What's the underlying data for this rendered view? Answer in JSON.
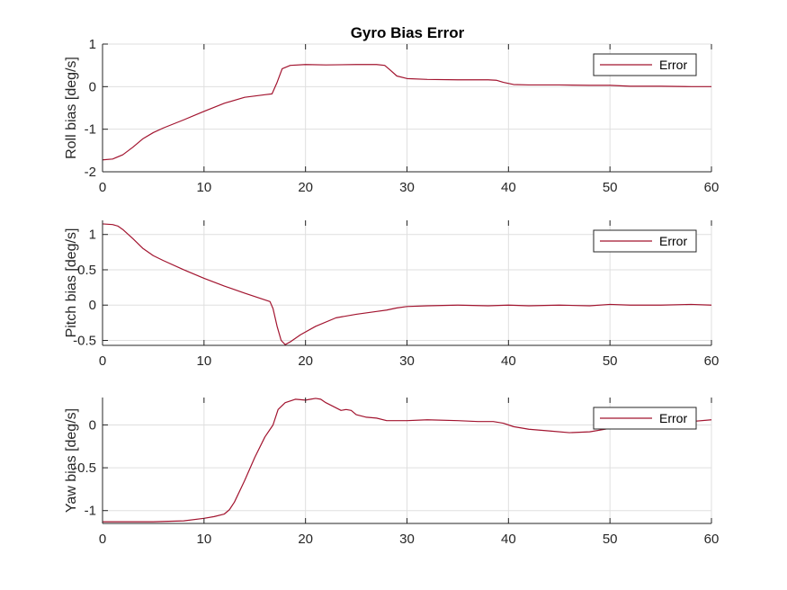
{
  "figure_title": "Gyro Bias Error",
  "colors": {
    "line": "#A2142F",
    "axis": "#262626",
    "grid": "#dfdfdf",
    "background": "#ffffff"
  },
  "chart_data": [
    {
      "type": "line",
      "title": "Gyro Bias Error",
      "xlabel": "",
      "ylabel": "Roll bias [deg/s]",
      "xlim": [
        0,
        60
      ],
      "ylim": [
        -2,
        1
      ],
      "xticks": [
        0,
        10,
        20,
        30,
        40,
        50,
        60
      ],
      "yticks": [
        -2,
        -1,
        0,
        1
      ],
      "ytick_labels": [
        "-2",
        "-1",
        "0",
        "1"
      ],
      "grid": true,
      "legend_position": "top-right",
      "series": [
        {
          "name": "Error",
          "x": [
            0,
            1,
            2,
            3,
            4,
            5,
            6,
            8,
            10,
            12,
            14,
            16,
            16.7,
            17.2,
            17.7,
            18.5,
            20,
            22,
            25,
            27,
            27.8,
            28.3,
            29,
            30,
            32,
            35,
            38,
            38.8,
            39.5,
            40.5,
            42,
            45,
            48,
            50,
            52,
            55,
            58,
            60
          ],
          "y": [
            -1.72,
            -1.7,
            -1.6,
            -1.42,
            -1.22,
            -1.08,
            -0.97,
            -0.78,
            -0.58,
            -0.39,
            -0.25,
            -0.19,
            -0.17,
            0.1,
            0.42,
            0.5,
            0.52,
            0.51,
            0.52,
            0.52,
            0.5,
            0.4,
            0.25,
            0.19,
            0.17,
            0.16,
            0.16,
            0.15,
            0.1,
            0.05,
            0.04,
            0.04,
            0.03,
            0.03,
            0.01,
            0.01,
            0.0,
            0.0
          ]
        }
      ]
    },
    {
      "type": "line",
      "title": "",
      "xlabel": "",
      "ylabel": "Pitch bias [deg/s]",
      "xlim": [
        0,
        60
      ],
      "ylim": [
        -0.57,
        1.2
      ],
      "xticks": [
        0,
        10,
        20,
        30,
        40,
        50,
        60
      ],
      "yticks": [
        -0.5,
        0,
        0.5,
        1
      ],
      "ytick_labels": [
        "-0.5",
        "0",
        "0.5",
        "1"
      ],
      "grid": true,
      "legend_position": "top-right",
      "series": [
        {
          "name": "Error",
          "x": [
            0,
            1,
            1.5,
            2,
            3,
            4,
            5,
            6,
            8,
            10,
            12,
            14,
            16.5,
            16.8,
            17.2,
            17.6,
            18.0,
            18.5,
            19.5,
            21,
            23,
            25,
            27,
            28,
            29,
            30,
            32,
            35,
            38,
            40,
            42,
            45,
            48,
            50,
            52,
            55,
            58,
            60
          ],
          "y": [
            1.15,
            1.14,
            1.12,
            1.07,
            0.94,
            0.8,
            0.7,
            0.63,
            0.5,
            0.38,
            0.27,
            0.17,
            0.05,
            -0.05,
            -0.3,
            -0.5,
            -0.56,
            -0.52,
            -0.42,
            -0.3,
            -0.18,
            -0.13,
            -0.09,
            -0.07,
            -0.04,
            -0.02,
            -0.01,
            0.0,
            -0.01,
            0.0,
            -0.01,
            0.0,
            -0.01,
            0.01,
            0.0,
            0.0,
            0.01,
            0.0
          ]
        }
      ]
    },
    {
      "type": "line",
      "title": "",
      "xlabel": "",
      "ylabel": "Yaw bias [deg/s]",
      "xlim": [
        0,
        60
      ],
      "ylim": [
        -1.15,
        0.32
      ],
      "xticks": [
        0,
        10,
        20,
        30,
        40,
        50,
        60
      ],
      "yticks": [
        -1,
        -0.5,
        0
      ],
      "ytick_labels": [
        "-1",
        "-0.5",
        "0"
      ],
      "grid": true,
      "legend_position": "top-right",
      "series": [
        {
          "name": "Error",
          "x": [
            0,
            5,
            8,
            10,
            11,
            12,
            12.5,
            13,
            14,
            15,
            16,
            16.8,
            17.3,
            18,
            19,
            20,
            20.5,
            21,
            21.5,
            22,
            23,
            23.5,
            24,
            24.5,
            25,
            26,
            27,
            28,
            30,
            32,
            35,
            37,
            38.5,
            39.5,
            40.5,
            42,
            44,
            46,
            48,
            50,
            52,
            55,
            58,
            60
          ],
          "y": [
            -1.13,
            -1.13,
            -1.12,
            -1.09,
            -1.07,
            -1.04,
            -0.99,
            -0.9,
            -0.65,
            -0.38,
            -0.14,
            0.0,
            0.18,
            0.26,
            0.3,
            0.29,
            0.3,
            0.31,
            0.3,
            0.26,
            0.2,
            0.17,
            0.18,
            0.17,
            0.12,
            0.09,
            0.08,
            0.05,
            0.05,
            0.06,
            0.05,
            0.04,
            0.04,
            0.02,
            -0.02,
            -0.05,
            -0.07,
            -0.09,
            -0.08,
            -0.04,
            0.0,
            0.02,
            0.04,
            0.06
          ]
        }
      ]
    }
  ]
}
